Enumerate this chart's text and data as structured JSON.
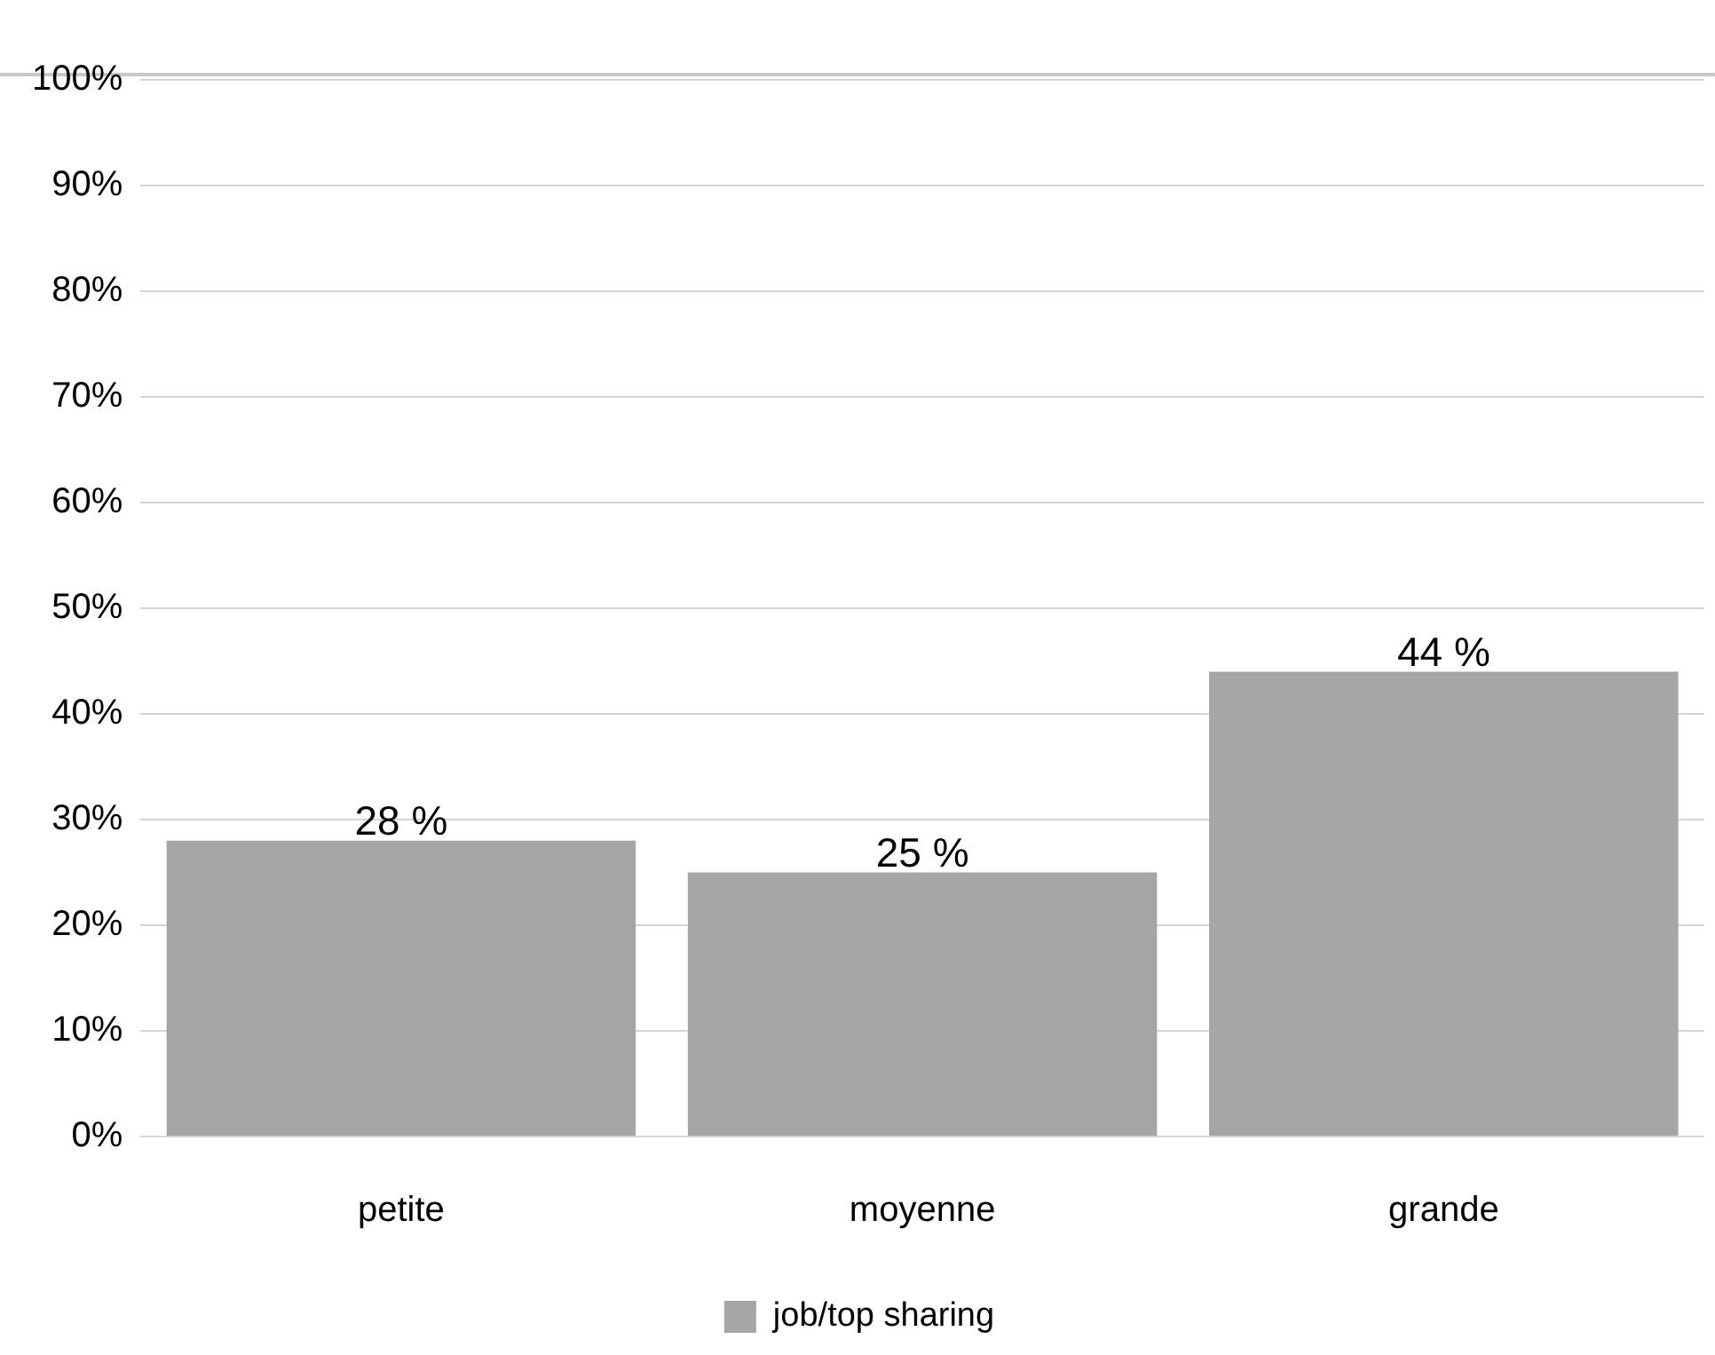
{
  "chart_data": {
    "type": "bar",
    "categories": [
      "petite",
      "moyenne",
      "grande"
    ],
    "series": [
      {
        "name": "job/top sharing",
        "color": "#a5a5a5",
        "values": [
          28,
          25,
          44
        ],
        "value_labels": [
          "28 %",
          "25 %",
          "44 %"
        ]
      }
    ],
    "ylim": [
      0,
      100
    ],
    "yticks": [
      {
        "value": 0,
        "label": "0%"
      },
      {
        "value": 10,
        "label": "10%"
      },
      {
        "value": 20,
        "label": "20%"
      },
      {
        "value": 30,
        "label": "30%"
      },
      {
        "value": 40,
        "label": "40%"
      },
      {
        "value": 50,
        "label": "50%"
      },
      {
        "value": 60,
        "label": "60%"
      },
      {
        "value": 70,
        "label": "70%"
      },
      {
        "value": 80,
        "label": "80%"
      },
      {
        "value": 90,
        "label": "90%"
      },
      {
        "value": 100,
        "label": "100%"
      }
    ],
    "grid": "y",
    "legend": "bottom"
  }
}
